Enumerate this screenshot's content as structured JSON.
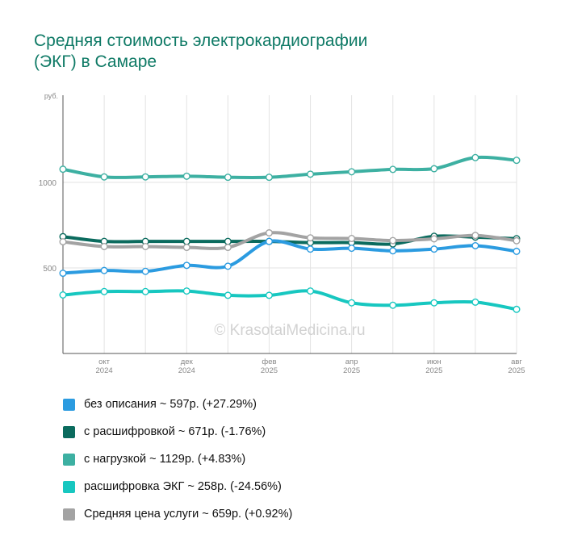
{
  "title_line1": "Средняя стоимость электрокардиографии",
  "title_line2": "(ЭКГ) в Самаре",
  "watermark": "© KrasotaiMedicina.ru",
  "colors": {
    "title": "#0f7a66",
    "grid": "#e3e3e3",
    "axis": "#555555",
    "tick_text": "#888888"
  },
  "chart_data": {
    "type": "line",
    "title": "Средняя стоимость электрокардиографии (ЭКГ) в Самаре",
    "ylabel": "руб.",
    "xlabel": "",
    "ylim": [
      0,
      1500
    ],
    "yticks": [
      500,
      1000
    ],
    "grid": true,
    "legend_position": "bottom",
    "x_points": 12,
    "x_tick_labels": [
      {
        "index": 1,
        "month": "окт",
        "year": "2024"
      },
      {
        "index": 3,
        "month": "дек",
        "year": "2024"
      },
      {
        "index": 5,
        "month": "фев",
        "year": "2025"
      },
      {
        "index": 7,
        "month": "апр",
        "year": "2025"
      },
      {
        "index": 9,
        "month": "июн",
        "year": "2025"
      },
      {
        "index": 11,
        "month": "авг",
        "year": "2025"
      }
    ],
    "series": [
      {
        "name": "без описания",
        "color": "#2b9be0",
        "legend": "без описания ~ 597р. (+27.29%)",
        "values": [
          469,
          485,
          480,
          515,
          510,
          655,
          610,
          615,
          600,
          610,
          630,
          597
        ]
      },
      {
        "name": "с расшифровкой",
        "color": "#0b6b5e",
        "legend": "с расшифровкой ~ 671р. (-1.76%)",
        "values": [
          683,
          655,
          655,
          655,
          655,
          655,
          648,
          648,
          640,
          685,
          680,
          671
        ]
      },
      {
        "name": "с нагрузкой",
        "color": "#3db0a2",
        "legend": "с нагрузкой ~ 1129р. (+4.83%)",
        "values": [
          1077,
          1032,
          1032,
          1036,
          1030,
          1030,
          1048,
          1062,
          1076,
          1080,
          1145,
          1129
        ]
      },
      {
        "name": "расшифровка ЭКГ",
        "color": "#17c7c0",
        "legend": "расшифровка ЭКГ ~ 258р. (-24.56%)",
        "values": [
          342,
          362,
          362,
          365,
          340,
          340,
          365,
          296,
          282,
          296,
          300,
          258
        ]
      },
      {
        "name": "Средняя цена услуги",
        "color": "#a3a3a3",
        "legend": "Средняя цена услуги ~ 659р. (+0.92%)",
        "values": [
          653,
          625,
          625,
          620,
          620,
          705,
          676,
          672,
          660,
          670,
          690,
          659
        ]
      }
    ]
  }
}
